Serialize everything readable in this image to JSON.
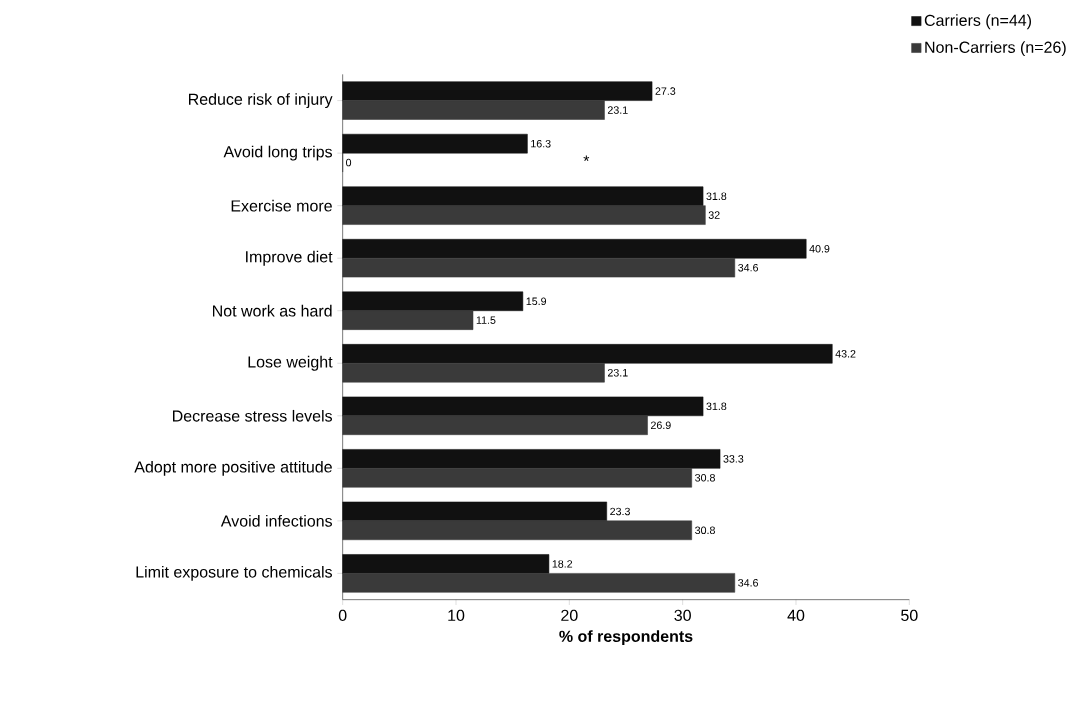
{
  "chart_data": {
    "type": "bar",
    "orientation": "horizontal",
    "xlabel": "% of respondents",
    "categories": [
      "Reduce risk of injury",
      "Avoid long trips",
      "Exercise more",
      "Improve diet",
      "Not work as hard",
      "Lose weight",
      "Decrease stress levels",
      "Adopt more positive attitude",
      "Avoid infections",
      "Limit exposure to chemicals"
    ],
    "series": [
      {
        "name": "Carriers (n=44)",
        "color": "#111111",
        "values": [
          27.3,
          16.3,
          31.8,
          40.9,
          15.9,
          43.2,
          31.8,
          33.3,
          23.3,
          18.2
        ],
        "value_labels": [
          "27.3",
          "16.3",
          "31.8",
          "40.9",
          "15.9",
          "43.2",
          "31.8",
          "33.3",
          "23.3",
          "18.2"
        ]
      },
      {
        "name": "Non-Carriers (n=26)",
        "color": "#3a3a3a",
        "values": [
          23.1,
          0,
          32,
          34.6,
          11.5,
          23.1,
          26.9,
          30.8,
          30.8,
          34.6
        ],
        "value_labels": [
          "23.1",
          "0",
          "32",
          "34.6",
          "11.5",
          "23.1",
          "26.9",
          "30.8",
          "30.8",
          "34.6"
        ]
      }
    ],
    "xlim": [
      0,
      50
    ],
    "xticks": [
      0,
      10,
      20,
      30,
      40,
      50
    ],
    "legend": "top right",
    "annotations": [
      "*"
    ]
  }
}
